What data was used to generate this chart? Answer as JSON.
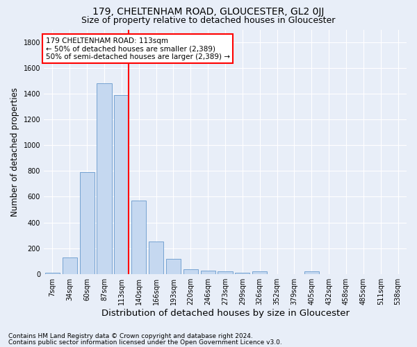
{
  "title1": "179, CHELTENHAM ROAD, GLOUCESTER, GL2 0JJ",
  "title2": "Size of property relative to detached houses in Gloucester",
  "xlabel": "Distribution of detached houses by size in Gloucester",
  "ylabel": "Number of detached properties",
  "bar_labels": [
    "7sqm",
    "34sqm",
    "60sqm",
    "87sqm",
    "113sqm",
    "140sqm",
    "166sqm",
    "193sqm",
    "220sqm",
    "246sqm",
    "273sqm",
    "299sqm",
    "326sqm",
    "352sqm",
    "379sqm",
    "405sqm",
    "432sqm",
    "458sqm",
    "485sqm",
    "511sqm",
    "538sqm"
  ],
  "bar_values": [
    10,
    130,
    790,
    1480,
    1390,
    570,
    250,
    115,
    38,
    27,
    20,
    10,
    20,
    0,
    0,
    20,
    0,
    0,
    0,
    0,
    0
  ],
  "bar_color": "#c5d8f0",
  "bar_edgecolor": "#6699cc",
  "vline_x_index": 4,
  "ylim": [
    0,
    1900
  ],
  "annotation_text": "179 CHELTENHAM ROAD: 113sqm\n← 50% of detached houses are smaller (2,389)\n50% of semi-detached houses are larger (2,389) →",
  "annotation_box_color": "white",
  "annotation_box_edgecolor": "red",
  "vline_color": "red",
  "footnote1": "Contains HM Land Registry data © Crown copyright and database right 2024.",
  "footnote2": "Contains public sector information licensed under the Open Government Licence v3.0.",
  "background_color": "#e8eef8",
  "grid_color": "white",
  "title1_fontsize": 10,
  "title2_fontsize": 9,
  "ylabel_fontsize": 8.5,
  "xlabel_fontsize": 9.5,
  "tick_fontsize": 7,
  "footnote_fontsize": 6.5,
  "yticks": [
    0,
    200,
    400,
    600,
    800,
    1000,
    1200,
    1400,
    1600,
    1800
  ]
}
